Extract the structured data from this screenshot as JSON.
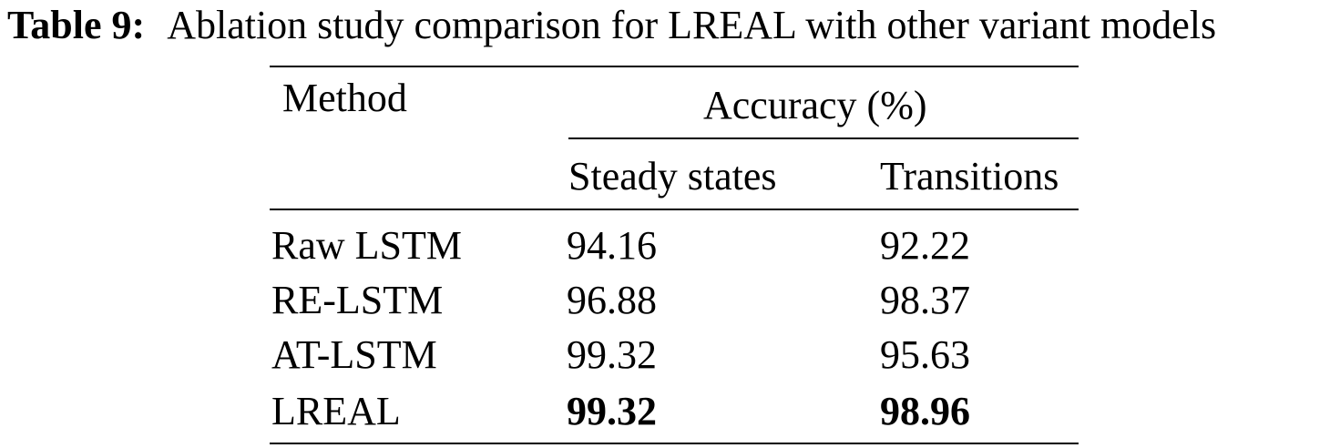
{
  "caption": {
    "label": "Table 9:",
    "text": "Ablation study comparison for LREAL with other variant models"
  },
  "table": {
    "header": {
      "method": "Method",
      "group": "Accuracy (%)",
      "col1": "Steady states",
      "col2": "Transitions"
    },
    "rows": [
      {
        "method": "Raw LSTM",
        "steady": "94.16",
        "transitions": "92.22",
        "bold": false
      },
      {
        "method": "RE-LSTM",
        "steady": "96.88",
        "transitions": "98.37",
        "bold": false
      },
      {
        "method": "AT-LSTM",
        "steady": "99.32",
        "transitions": "95.63",
        "bold": false
      },
      {
        "method": "LREAL",
        "steady": "99.32",
        "transitions": "98.96",
        "bold": true
      }
    ]
  }
}
